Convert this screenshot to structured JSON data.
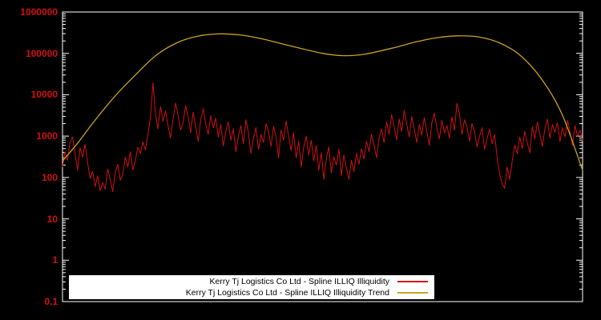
{
  "chart_data": {
    "type": "line",
    "title": "",
    "xlabel": "",
    "ylabel": "",
    "yscale": "log",
    "ylim": [
      0.1,
      1000000
    ],
    "grid": false,
    "background_color": "#000000",
    "border_color": "#ffffff",
    "axis_label_color": "#d01111",
    "y_ticks": [
      {
        "label": "1000000",
        "value": 1000000
      },
      {
        "label": "100000",
        "value": 100000
      },
      {
        "label": "10000",
        "value": 10000
      },
      {
        "label": "1000",
        "value": 1000
      },
      {
        "label": "100",
        "value": 100
      },
      {
        "label": "10",
        "value": 10
      },
      {
        "label": "1",
        "value": 1
      },
      {
        "label": "0.1",
        "value": 0.1
      }
    ],
    "series": [
      {
        "name": "Kerry Tj Logistics Co Ltd - Spline ILLIQ Illiquidity",
        "color": "#d01111",
        "style": "noisy-line",
        "values": [
          180,
          420,
          260,
          730,
          950,
          380,
          150,
          520,
          310,
          640,
          220,
          95,
          140,
          60,
          110,
          48,
          75,
          52,
          160,
          90,
          45,
          130,
          210,
          85,
          120,
          310,
          180,
          420,
          150,
          260,
          540,
          380,
          720,
          460,
          1100,
          2800,
          19500,
          3400,
          1500,
          5200,
          2300,
          4100,
          1800,
          900,
          2600,
          6300,
          3200,
          1400,
          2100,
          5400,
          2900,
          1200,
          3800,
          1700,
          750,
          2400,
          4600,
          2000,
          1100,
          3100,
          1600,
          2700,
          950,
          1900,
          580,
          1300,
          2200,
          800,
          1500,
          420,
          1000,
          1800,
          650,
          2500,
          1200,
          380,
          900,
          1600,
          480,
          1100,
          700,
          2000,
          1300,
          560,
          1700,
          950,
          300,
          1400,
          800,
          2300,
          1000,
          450,
          1200,
          300,
          750,
          180,
          550,
          1000,
          350,
          800,
          250,
          600,
          150,
          400,
          90,
          280,
          550,
          130,
          320,
          200,
          480,
          110,
          350,
          170,
          90,
          260,
          140,
          380,
          210,
          500,
          280,
          750,
          420,
          1100,
          600,
          300,
          900,
          1500,
          700,
          2200,
          1100,
          3300,
          1700,
          800,
          2600,
          1300,
          4200,
          2000,
          950,
          3000,
          1500,
          700,
          1900,
          1050,
          2800,
          1350,
          600,
          2100,
          3600,
          1600,
          850,
          2400,
          1200,
          1800,
          900,
          2900,
          1400,
          6200,
          3500,
          1100,
          2500,
          1700,
          750,
          2000,
          1300,
          550,
          1000,
          1600,
          480,
          880,
          1450,
          650,
          1100,
          300,
          120,
          70,
          55,
          180,
          90,
          250,
          600,
          380,
          950,
          500,
          1300,
          700,
          400,
          1700,
          850,
          2200,
          1100,
          560,
          1500,
          2600,
          900,
          1900,
          1250,
          2100,
          750,
          1600,
          950,
          2400,
          1300,
          600,
          1800,
          1000,
          1400,
          780
        ]
      },
      {
        "name": "Kerry Tj Logistics Co Ltd - Spline ILLIQ Illiquidity Trend",
        "color": "#c9a227",
        "style": "smooth-spline",
        "x": [
          0,
          0.03,
          0.06,
          0.1,
          0.14,
          0.18,
          0.22,
          0.26,
          0.3,
          0.34,
          0.38,
          0.44,
          0.5,
          0.54,
          0.58,
          0.64,
          0.68,
          0.72,
          0.76,
          0.8,
          0.84,
          0.88,
          0.92,
          0.96,
          1.0
        ],
        "values": [
          250,
          700,
          2200,
          9000,
          30000,
          90000,
          180000,
          260000,
          295000,
          280000,
          230000,
          150000,
          100000,
          88000,
          95000,
          140000,
          190000,
          240000,
          265000,
          250000,
          180000,
          90000,
          25000,
          3500,
          150
        ]
      }
    ],
    "legend": {
      "position": "bottom-center",
      "background": "#ffffff",
      "entries": [
        {
          "label": "Kerry Tj Logistics Co Ltd - Spline ILLIQ Illiquidity",
          "color": "#d01111"
        },
        {
          "label": "Kerry Tj Logistics Co Ltd - Spline ILLIQ Illiquidity Trend",
          "color": "#c9a227"
        }
      ]
    }
  }
}
